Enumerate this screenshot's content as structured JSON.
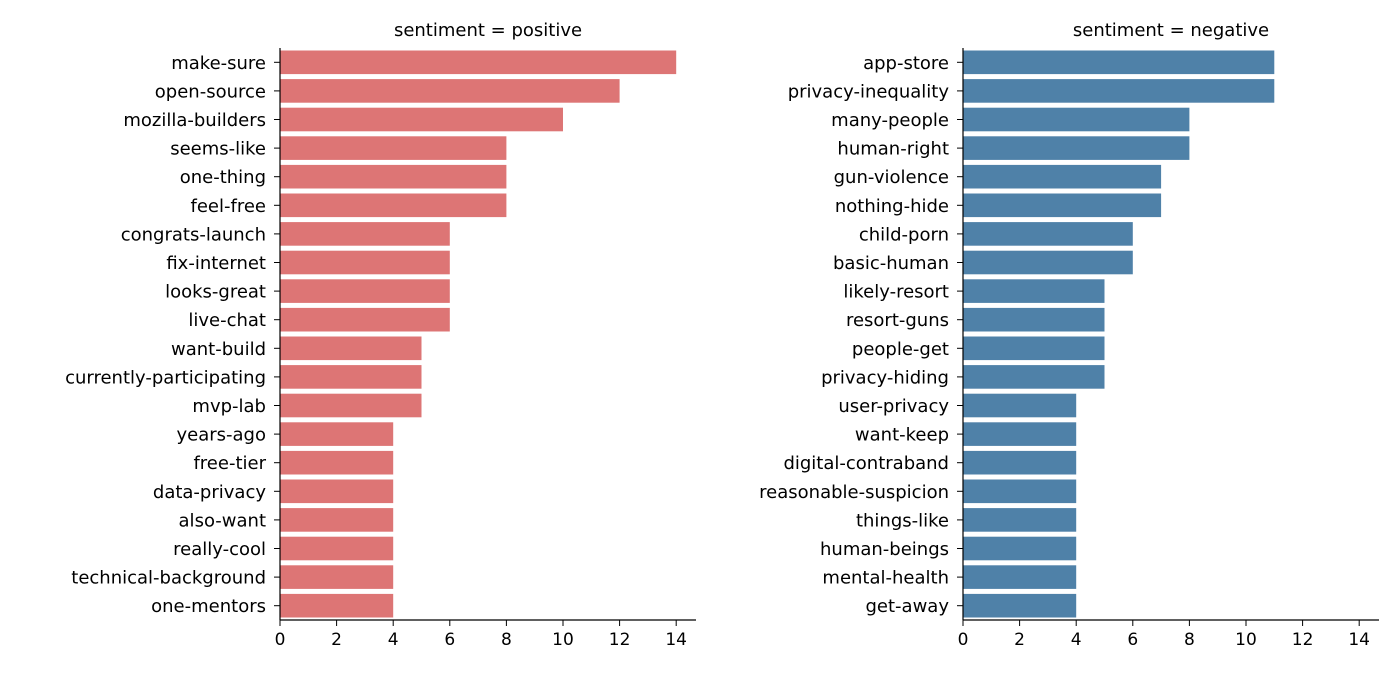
{
  "chart_data": [
    {
      "type": "bar",
      "orientation": "horizontal",
      "title": "sentiment = positive",
      "xlabel": "",
      "ylabel": "",
      "color": "#dd7575",
      "xlim": [
        0,
        14.7
      ],
      "xticks": [
        "0",
        "2",
        "4",
        "6",
        "8",
        "10",
        "12",
        "14"
      ],
      "grid": false,
      "categories": [
        "make-sure",
        "open-source",
        "mozilla-builders",
        "seems-like",
        "one-thing",
        "feel-free",
        "congrats-launch",
        "fix-internet",
        "looks-great",
        "live-chat",
        "want-build",
        "currently-participating",
        "mvp-lab",
        "years-ago",
        "free-tier",
        "data-privacy",
        "also-want",
        "really-cool",
        "technical-background",
        "one-mentors"
      ],
      "values": [
        14,
        12,
        10,
        8,
        8,
        8,
        6,
        6,
        6,
        6,
        5,
        5,
        5,
        4,
        4,
        4,
        4,
        4,
        4,
        4
      ]
    },
    {
      "type": "bar",
      "orientation": "horizontal",
      "title": "sentiment = negative",
      "xlabel": "",
      "ylabel": "",
      "color": "#4f81a8",
      "xlim": [
        0,
        14.7
      ],
      "xticks": [
        "0",
        "2",
        "4",
        "6",
        "8",
        "10",
        "12",
        "14"
      ],
      "grid": false,
      "categories": [
        "app-store",
        "privacy-inequality",
        "many-people",
        "human-right",
        "gun-violence",
        "nothing-hide",
        "child-porn",
        "basic-human",
        "likely-resort",
        "resort-guns",
        "people-get",
        "privacy-hiding",
        "user-privacy",
        "want-keep",
        "digital-contraband",
        "reasonable-suspicion",
        "things-like",
        "human-beings",
        "mental-health",
        "get-away"
      ],
      "values": [
        11,
        11,
        8,
        8,
        7,
        7,
        6,
        6,
        5,
        5,
        5,
        5,
        4,
        4,
        4,
        4,
        4,
        4,
        4,
        4
      ]
    }
  ]
}
